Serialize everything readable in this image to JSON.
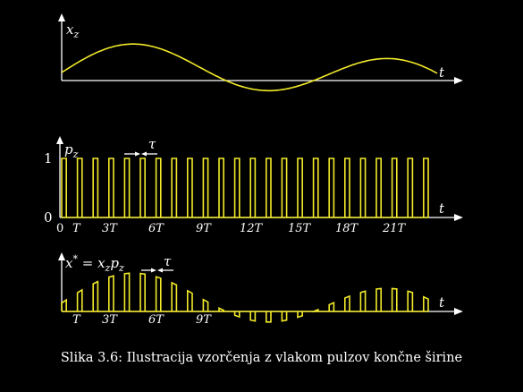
{
  "panel_top": {
    "ylabel": "x_z",
    "xlabel": "t"
  },
  "panel_mid": {
    "ylabel": "p_z",
    "xlabel": "t",
    "y_ticks": [
      "1",
      "0"
    ],
    "x_ticks": [
      "0",
      "T",
      "3T",
      "6T",
      "9T",
      "12T",
      "15T",
      "18T",
      "21T"
    ],
    "width_label": "τ",
    "pulse_count": 24
  },
  "panel_bot": {
    "ylabel": "x* = x_z p_z",
    "xlabel": "t",
    "x_ticks": [
      "T",
      "3T",
      "6T",
      "9T"
    ],
    "width_label": "τ"
  },
  "colors": {
    "signal": "#f2ea2a",
    "axis": "#ffffff",
    "background": "#000000"
  },
  "caption": "Slika 3.6: Ilustracija vzorčenja z vlakom pulzov končne širine"
}
